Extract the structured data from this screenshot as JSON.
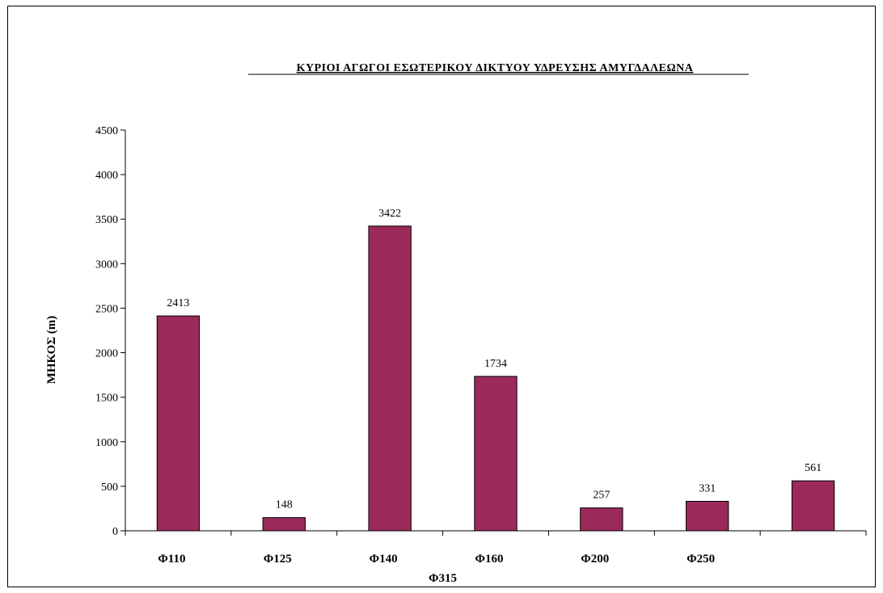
{
  "chart_data": {
    "type": "bar",
    "title": "ΚΥΡΙΟΙ ΑΓΩΓΟΙ ΕΣΩΤΕΡΙΚΟΥ ΔΙΚΤΥΟΥ ΥΔΡΕΥΣΗΣ ΑΜΥΓΔΑΛΕΩΝΑ",
    "ylabel": "ΜΗΚΟΣ  (m)",
    "xlabel": "",
    "categories": [
      "Φ110",
      "Φ125",
      "Φ140",
      "Φ160",
      "Φ200",
      "Φ250",
      "Φ315"
    ],
    "values": [
      2413,
      148,
      3422,
      1734,
      257,
      331,
      561
    ],
    "data_labels": [
      "2413",
      "148",
      "3422",
      "1734",
      "257",
      "331",
      "561"
    ],
    "ylim": [
      0,
      4500
    ],
    "yticks": [
      "0",
      "500",
      "1000",
      "1500",
      "2000",
      "2500",
      "3000",
      "3500",
      "4000",
      "4500"
    ],
    "bar_color": "#9B2A5A",
    "grid": false,
    "legend": "none"
  }
}
